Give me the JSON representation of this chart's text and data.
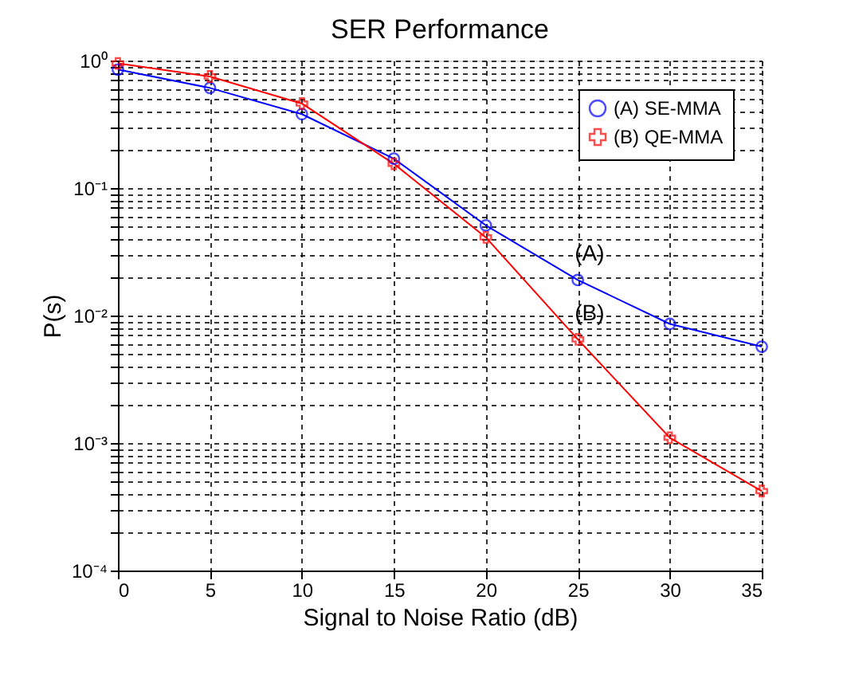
{
  "chart_data": {
    "type": "line",
    "title": "SER Performance",
    "xlabel": "Signal to Noise Ratio (dB)",
    "ylabel": "P(s)",
    "x": [
      0,
      5,
      10,
      15,
      20,
      25,
      30,
      35
    ],
    "series": [
      {
        "name": "(A) SE-MMA",
        "color": "#0000ff",
        "marker": "circle",
        "values": [
          0.85,
          0.61,
          0.38,
          0.17,
          0.051,
          0.019,
          0.0086,
          0.0057
        ]
      },
      {
        "name": "(B) QE-MMA",
        "color": "#ff0000",
        "marker": "cross",
        "values": [
          0.95,
          0.75,
          0.46,
          0.155,
          0.041,
          0.0065,
          0.0011,
          0.00042
        ]
      }
    ],
    "log": "y",
    "xlim": [
      0,
      35
    ],
    "xticks": [
      0,
      5,
      10,
      15,
      20,
      25,
      30,
      35
    ],
    "ylim": [
      0.0001,
      1
    ],
    "yticks": [
      {
        "value": 0.0001,
        "label": "10⁻⁴"
      },
      {
        "value": 0.0002,
        "label": null
      },
      {
        "value": 0.0003,
        "label": null
      },
      {
        "value": 0.0004,
        "label": null
      },
      {
        "value": 0.0005,
        "label": null
      },
      {
        "value": 0.0006,
        "label": null
      },
      {
        "value": 0.0007,
        "label": null
      },
      {
        "value": 0.0008,
        "label": null
      },
      {
        "value": 0.0009,
        "label": null
      },
      {
        "value": 0.001,
        "label": "10⁻³"
      },
      {
        "value": 0.002,
        "label": null
      },
      {
        "value": 0.003,
        "label": null
      },
      {
        "value": 0.004,
        "label": null
      },
      {
        "value": 0.005,
        "label": null
      },
      {
        "value": 0.006,
        "label": null
      },
      {
        "value": 0.007,
        "label": null
      },
      {
        "value": 0.008,
        "label": null
      },
      {
        "value": 0.009,
        "label": null
      },
      {
        "value": 0.01,
        "label": "10⁻²"
      },
      {
        "value": 0.02,
        "label": null
      },
      {
        "value": 0.03,
        "label": null
      },
      {
        "value": 0.04,
        "label": null
      },
      {
        "value": 0.05,
        "label": null
      },
      {
        "value": 0.06,
        "label": null
      },
      {
        "value": 0.07,
        "label": null
      },
      {
        "value": 0.08,
        "label": null
      },
      {
        "value": 0.09,
        "label": null
      },
      {
        "value": 0.1,
        "label": "10⁻¹"
      },
      {
        "value": 0.2,
        "label": null
      },
      {
        "value": 0.3,
        "label": null
      },
      {
        "value": 0.4,
        "label": null
      },
      {
        "value": 0.5,
        "label": null
      },
      {
        "value": 0.6,
        "label": null
      },
      {
        "value": 0.7,
        "label": null
      },
      {
        "value": 0.8,
        "label": null
      },
      {
        "value": 0.9,
        "label": null
      },
      {
        "value": 1,
        "label": "10⁰"
      }
    ],
    "grid": true,
    "line_style": "solid",
    "legend": "top right",
    "annotations": [
      {
        "text": "(A)",
        "x": 25,
        "y": 0.019
      },
      {
        "text": "(B)",
        "x": 25,
        "y": 0.0065
      }
    ]
  }
}
